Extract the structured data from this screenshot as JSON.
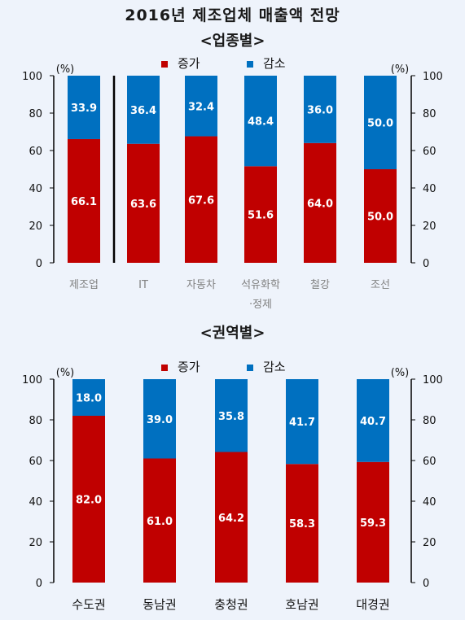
{
  "title": "2016년 제조업체 매출액 전망",
  "colors": {
    "increase": "#c00000",
    "decrease": "#0070c0",
    "background": "#eef3fb"
  },
  "chart_data": [
    {
      "type": "bar",
      "stacked": true,
      "subtitle": "<업종별>",
      "unit": "(%)",
      "ylim": [
        0,
        100
      ],
      "yticks": [
        0,
        20,
        40,
        60,
        80,
        100
      ],
      "legend": [
        "증가",
        "감소"
      ],
      "legend_position": "top-center",
      "categories": [
        "제조업",
        "IT",
        "자동차",
        "석유화학·정제",
        "철강",
        "조선"
      ],
      "series": [
        {
          "name": "증가",
          "values": [
            66.1,
            63.6,
            67.6,
            51.6,
            64.0,
            50.0
          ]
        },
        {
          "name": "감소",
          "values": [
            33.9,
            36.4,
            32.4,
            48.4,
            36.0,
            50.0
          ]
        }
      ],
      "value_labels_increase": [
        "66.1",
        "63.6",
        "67.6",
        "51.6",
        "64.0",
        "50.0"
      ],
      "value_labels_decrease": [
        "33.9",
        "36.4",
        "32.4",
        "48.4",
        "36.0",
        "50.0"
      ],
      "category_label_lines": [
        [
          "제조업"
        ],
        [
          "IT"
        ],
        [
          "자동차"
        ],
        [
          "석유화학",
          "·정제"
        ],
        [
          "철강"
        ],
        [
          "조선"
        ]
      ]
    },
    {
      "type": "bar",
      "stacked": true,
      "subtitle": "<권역별>",
      "unit": "(%)",
      "ylim": [
        0,
        100
      ],
      "yticks": [
        0,
        20,
        40,
        60,
        80,
        100
      ],
      "legend": [
        "증가",
        "감소"
      ],
      "legend_position": "top-center",
      "categories": [
        "수도권",
        "동남권",
        "충청권",
        "호남권",
        "대경권"
      ],
      "series": [
        {
          "name": "증가",
          "values": [
            82.0,
            61.0,
            64.2,
            58.3,
            59.3
          ]
        },
        {
          "name": "감소",
          "values": [
            18.0,
            39.0,
            35.8,
            41.7,
            40.7
          ]
        }
      ],
      "value_labels_increase": [
        "82.0",
        "61.0",
        "64.2",
        "58.3",
        "59.3"
      ],
      "value_labels_decrease": [
        "18.0",
        "39.0",
        "35.8",
        "41.7",
        "40.7"
      ],
      "category_label_lines": [
        [
          "수도권"
        ],
        [
          "동남권"
        ],
        [
          "충청권"
        ],
        [
          "호남권"
        ],
        [
          "대경권"
        ]
      ]
    }
  ]
}
